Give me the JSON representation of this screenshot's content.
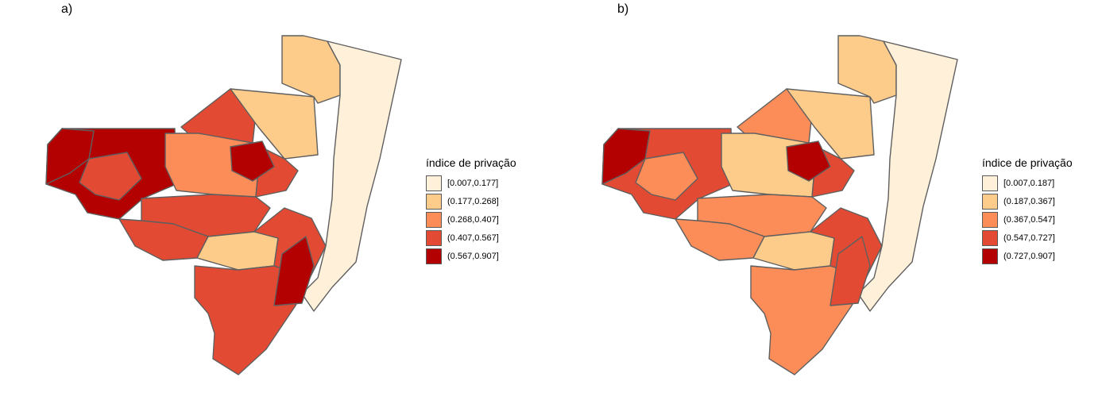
{
  "colors": {
    "palette": [
      "#fef0d9",
      "#fdcc8a",
      "#fc8d59",
      "#e34a33",
      "#b30000"
    ],
    "border": "#5f5f5f"
  },
  "panels": [
    {
      "label": "a)",
      "legend": {
        "title": "índice de privação",
        "items": [
          "[0.007,0.177]",
          "(0.177,0.268]",
          "(0.268,0.407]",
          "(0.407,0.567]",
          "(0.567,0.907]"
        ]
      },
      "regions": [
        {
          "name": "west",
          "class": 4
        },
        {
          "name": "west-mid",
          "class": 4
        },
        {
          "name": "west-inner",
          "class": 3
        },
        {
          "name": "northwest-large",
          "class": 3
        },
        {
          "name": "north-large",
          "class": 1
        },
        {
          "name": "central-large",
          "class": 2
        },
        {
          "name": "center-east",
          "class": 3
        },
        {
          "name": "center-south",
          "class": 3
        },
        {
          "name": "south-west",
          "class": 3
        },
        {
          "name": "south-center",
          "class": 1
        },
        {
          "name": "south-east",
          "class": 3
        },
        {
          "name": "far-south",
          "class": 3
        },
        {
          "name": "north-strip",
          "class": 1
        },
        {
          "name": "east-coast",
          "class": 0
        },
        {
          "name": "center-dark",
          "class": 4
        },
        {
          "name": "southeast-dark",
          "class": 4
        }
      ]
    },
    {
      "label": "b)",
      "legend": {
        "title": "índice de privação",
        "items": [
          "[0.007,0.187]",
          "(0.187,0.367]",
          "(0.367,0.547]",
          "(0.547,0.727]",
          "(0.727,0.907]"
        ]
      },
      "regions": [
        {
          "name": "west",
          "class": 3
        },
        {
          "name": "west-mid",
          "class": 4
        },
        {
          "name": "west-inner",
          "class": 2
        },
        {
          "name": "northwest-large",
          "class": 2
        },
        {
          "name": "north-large",
          "class": 1
        },
        {
          "name": "central-large",
          "class": 1
        },
        {
          "name": "center-east",
          "class": 3
        },
        {
          "name": "center-south",
          "class": 2
        },
        {
          "name": "south-west",
          "class": 2
        },
        {
          "name": "south-center",
          "class": 1
        },
        {
          "name": "south-east",
          "class": 3
        },
        {
          "name": "far-south",
          "class": 2
        },
        {
          "name": "north-strip",
          "class": 1
        },
        {
          "name": "east-coast",
          "class": 0
        },
        {
          "name": "center-dark",
          "class": 4
        },
        {
          "name": "southeast-dark",
          "class": 3
        }
      ]
    }
  ]
}
